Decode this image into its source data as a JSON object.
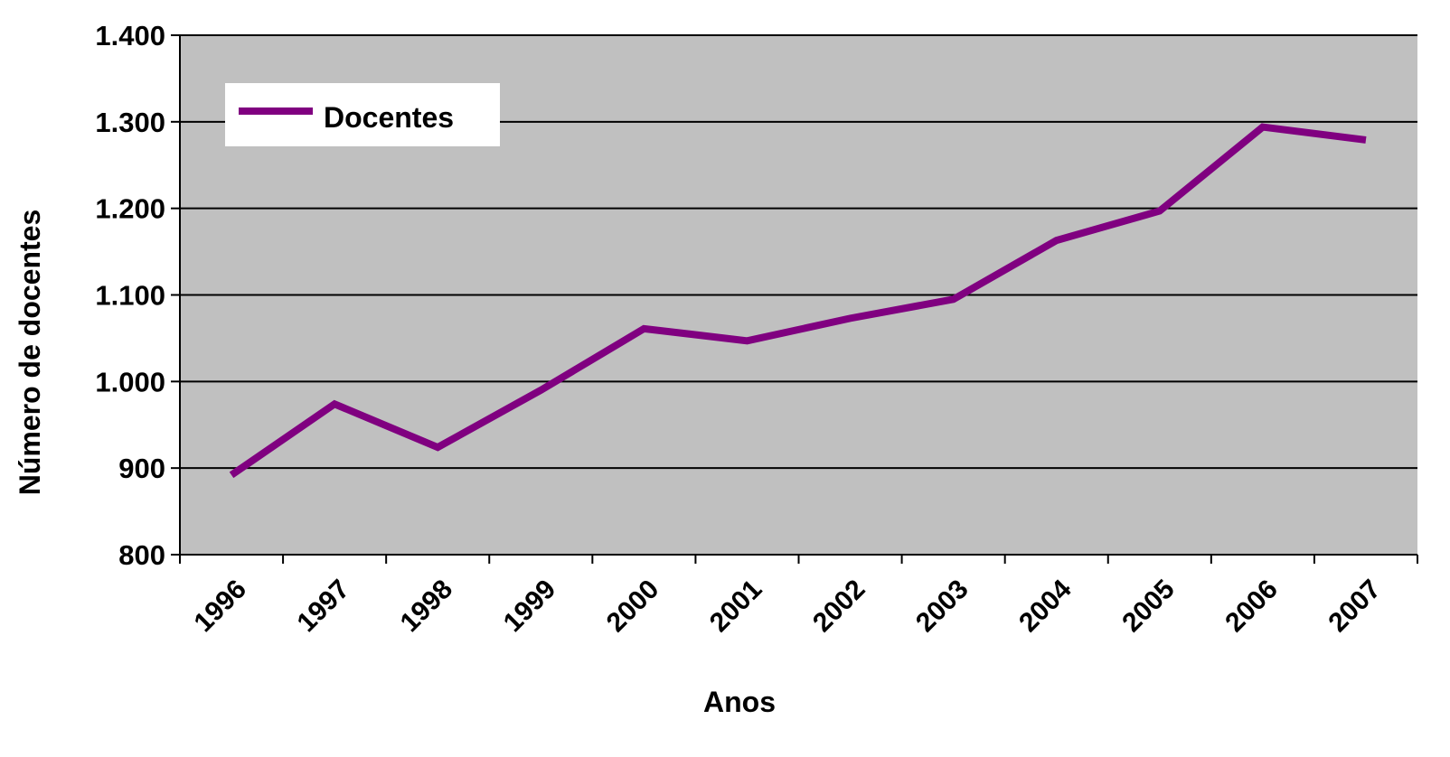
{
  "chart_data": {
    "type": "line",
    "x_label": "Anos",
    "y_label": "Número de docentes",
    "categories": [
      "1996",
      "1997",
      "1998",
      "1999",
      "2000",
      "2001",
      "2002",
      "2003",
      "2004",
      "2005",
      "2006",
      "2007"
    ],
    "series": [
      {
        "name": "Docentes",
        "color": "#800080",
        "values": [
          892,
          974,
          924,
          990,
          1061,
          1047,
          1073,
          1095,
          1163,
          1197,
          1294,
          1279
        ]
      }
    ],
    "ylim": [
      800,
      1400
    ],
    "yticks": [
      800,
      900,
      {
        "value": 1000,
        "label": "1.000"
      },
      {
        "value": 1100,
        "label": "1.100"
      },
      {
        "value": 1200,
        "label": "1.200"
      },
      {
        "value": 1300,
        "label": "1.300"
      },
      {
        "value": 1400,
        "label": "1.400"
      }
    ],
    "grid": true,
    "legend": "upper left"
  }
}
